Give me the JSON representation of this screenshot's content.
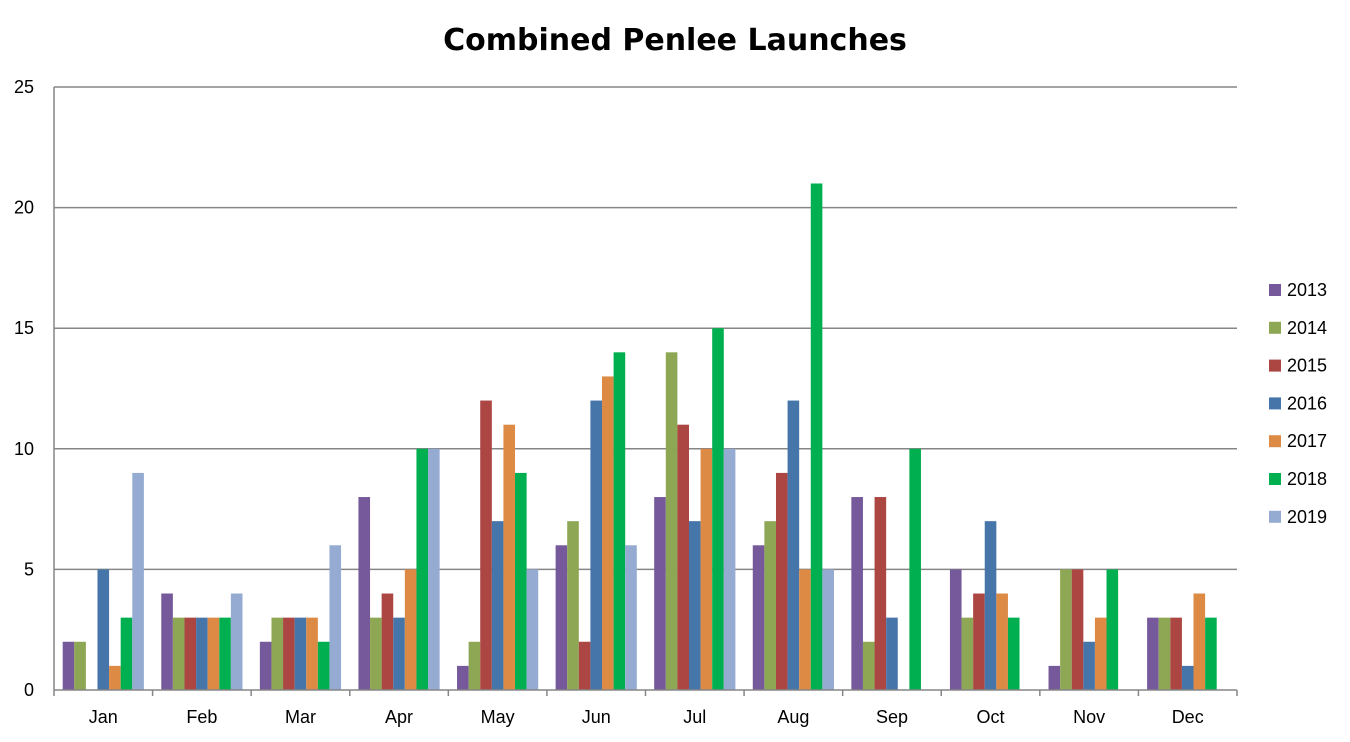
{
  "chart_data": {
    "type": "bar",
    "title": "Combined Penlee Launches",
    "xlabel": "",
    "ylabel": "",
    "ylim": [
      0,
      25
    ],
    "yticks": [
      0,
      5,
      10,
      15,
      20,
      25
    ],
    "grid": true,
    "legend_position": "right",
    "categories": [
      "Jan",
      "Feb",
      "Mar",
      "Apr",
      "May",
      "Jun",
      "Jul",
      "Aug",
      "Sep",
      "Oct",
      "Nov",
      "Dec"
    ],
    "series": [
      {
        "name": "2013",
        "color": "#76599A",
        "values": [
          2,
          4,
          2,
          8,
          1,
          6,
          8,
          6,
          8,
          5,
          1,
          3
        ]
      },
      {
        "name": "2014",
        "color": "#8EA754",
        "values": [
          2,
          3,
          3,
          3,
          2,
          7,
          14,
          7,
          2,
          3,
          5,
          3
        ]
      },
      {
        "name": "2015",
        "color": "#AB4643",
        "values": [
          0,
          3,
          3,
          4,
          12,
          2,
          11,
          9,
          8,
          4,
          5,
          3
        ]
      },
      {
        "name": "2016",
        "color": "#4575A9",
        "values": [
          5,
          3,
          3,
          3,
          7,
          12,
          7,
          12,
          3,
          7,
          2,
          1
        ]
      },
      {
        "name": "2017",
        "color": "#DD8A45",
        "values": [
          1,
          3,
          3,
          5,
          11,
          13,
          10,
          5,
          0,
          4,
          3,
          4
        ]
      },
      {
        "name": "2018",
        "color": "#00AF50",
        "values": [
          3,
          3,
          2,
          10,
          9,
          14,
          15,
          21,
          10,
          3,
          5,
          3
        ]
      },
      {
        "name": "2019",
        "color": "#96ABD2",
        "values": [
          9,
          4,
          6,
          10,
          5,
          6,
          10,
          5,
          0,
          0,
          0,
          0
        ]
      }
    ]
  }
}
